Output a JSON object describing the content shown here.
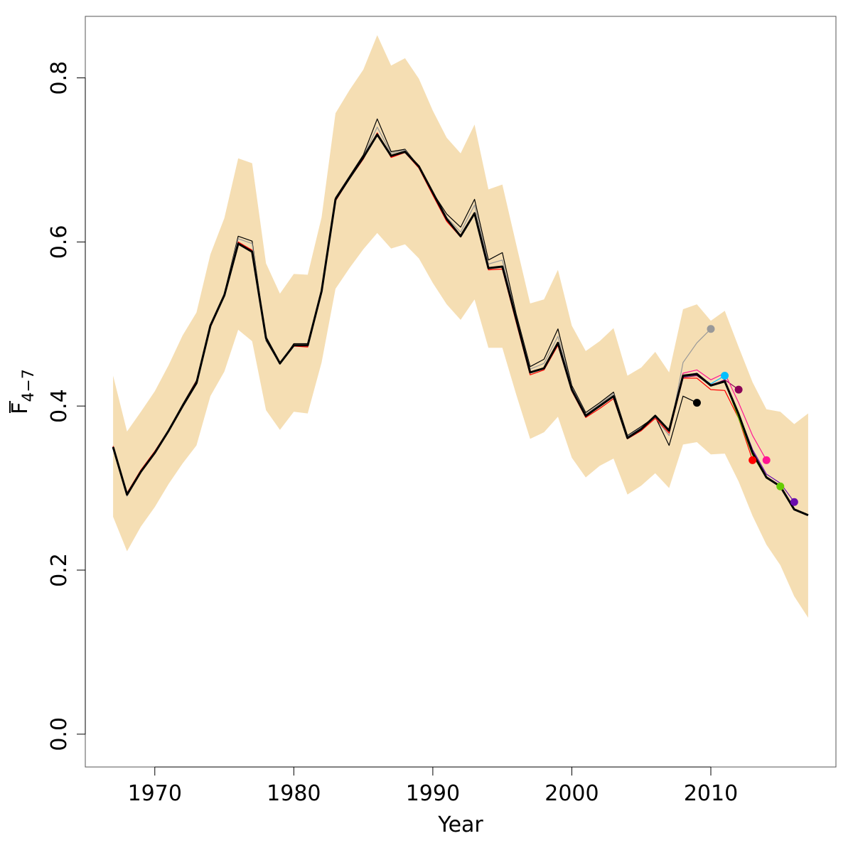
{
  "chart_data": {
    "type": "line",
    "title": "",
    "xlabel": "Year",
    "ylabel_main": "F",
    "ylabel_sub": "4−7",
    "xlim": [
      1965,
      2019
    ],
    "ylim": [
      -0.04,
      0.875
    ],
    "xticks": [
      1970,
      1980,
      1990,
      2000,
      2010
    ],
    "yticks": [
      0.0,
      0.2,
      0.4,
      0.6,
      0.8
    ],
    "ytick_labels": [
      "0.0",
      "0.2",
      "0.4",
      "0.6",
      "0.8"
    ],
    "band_color": "#f5deb3",
    "band": {
      "x": [
        1967,
        1968,
        1969,
        1970,
        1971,
        1972,
        1973,
        1974,
        1975,
        1976,
        1977,
        1978,
        1979,
        1980,
        1981,
        1982,
        1983,
        1984,
        1985,
        1986,
        1987,
        1988,
        1989,
        1990,
        1991,
        1992,
        1993,
        1994,
        1995,
        1996,
        1997,
        1998,
        1999,
        2000,
        2001,
        2002,
        2003,
        2004,
        2005,
        2006,
        2007,
        2008,
        2009,
        2010,
        2011,
        2012,
        2013,
        2014,
        2015,
        2016,
        2017
      ],
      "upper": [
        0.437,
        0.369,
        0.393,
        0.418,
        0.45,
        0.486,
        0.514,
        0.585,
        0.629,
        0.702,
        0.696,
        0.574,
        0.537,
        0.561,
        0.56,
        0.63,
        0.757,
        0.785,
        0.81,
        0.852,
        0.815,
        0.824,
        0.799,
        0.76,
        0.727,
        0.708,
        0.743,
        0.664,
        0.67,
        0.597,
        0.525,
        0.53,
        0.566,
        0.498,
        0.467,
        0.479,
        0.495,
        0.437,
        0.447,
        0.466,
        0.441,
        0.518,
        0.524,
        0.504,
        0.516,
        0.472,
        0.429,
        0.396,
        0.393,
        0.378,
        0.391
      ],
      "lower": [
        0.265,
        0.223,
        0.253,
        0.277,
        0.305,
        0.33,
        0.352,
        0.412,
        0.442,
        0.493,
        0.479,
        0.395,
        0.371,
        0.393,
        0.391,
        0.453,
        0.543,
        0.568,
        0.591,
        0.611,
        0.592,
        0.597,
        0.58,
        0.55,
        0.524,
        0.505,
        0.53,
        0.471,
        0.471,
        0.414,
        0.36,
        0.368,
        0.387,
        0.337,
        0.313,
        0.327,
        0.336,
        0.292,
        0.303,
        0.318,
        0.3,
        0.353,
        0.356,
        0.341,
        0.342,
        0.308,
        0.266,
        0.231,
        0.206,
        0.168,
        0.142
      ]
    },
    "series": [
      {
        "color": "#000000",
        "width": 3,
        "x": [
          1967,
          1968,
          1969,
          1970,
          1971,
          1972,
          1973,
          1974,
          1975,
          1976,
          1977,
          1978,
          1979,
          1980,
          1981,
          1982,
          1983,
          1984,
          1985,
          1986,
          1987,
          1988,
          1989,
          1990,
          1991,
          1992,
          1993,
          1994,
          1995,
          1996,
          1997,
          1998,
          1999,
          2000,
          2001,
          2002,
          2003,
          2004,
          2005,
          2006,
          2007,
          2008,
          2009,
          2010,
          2011,
          2012,
          2013,
          2014,
          2015,
          2016,
          2017
        ],
        "values": [
          0.35,
          0.292,
          0.32,
          0.343,
          0.37,
          0.4,
          0.428,
          0.498,
          0.535,
          0.598,
          0.588,
          0.483,
          0.452,
          0.474,
          0.474,
          0.54,
          0.652,
          0.678,
          0.703,
          0.731,
          0.705,
          0.71,
          0.692,
          0.66,
          0.628,
          0.607,
          0.635,
          0.568,
          0.57,
          0.506,
          0.441,
          0.446,
          0.477,
          0.42,
          0.388,
          0.4,
          0.412,
          0.361,
          0.372,
          0.388,
          0.37,
          0.437,
          0.439,
          0.425,
          0.43,
          0.39,
          0.343,
          0.313,
          0.302,
          0.274,
          0.267
        ]
      },
      {
        "color": "#000000",
        "width": 1.2,
        "x": [
          1967,
          1968,
          1969,
          1970,
          1971,
          1972,
          1973,
          1974,
          1975,
          1976,
          1977,
          1978,
          1979,
          1980,
          1981,
          1982,
          1983,
          1984,
          1985,
          1986,
          1987,
          1988,
          1989,
          1990,
          1991,
          1992,
          1993,
          1994,
          1995,
          1996,
          1997,
          1998,
          1999,
          2000,
          2001,
          2002,
          2003,
          2004,
          2005,
          2006,
          2007,
          2008,
          2009
        ],
        "values": [
          0.351,
          0.291,
          0.321,
          0.344,
          0.371,
          0.402,
          0.431,
          0.499,
          0.537,
          0.607,
          0.601,
          0.48,
          0.451,
          0.476,
          0.476,
          0.541,
          0.654,
          0.68,
          0.706,
          0.75,
          0.71,
          0.713,
          0.692,
          0.66,
          0.634,
          0.618,
          0.652,
          0.578,
          0.587,
          0.512,
          0.448,
          0.457,
          0.494,
          0.425,
          0.392,
          0.404,
          0.417,
          0.364,
          0.375,
          0.387,
          0.352,
          0.412,
          0.404
        ]
      },
      {
        "color": "#999999",
        "width": 1.2,
        "x": [
          1967,
          1968,
          1969,
          1970,
          1971,
          1972,
          1973,
          1974,
          1975,
          1976,
          1977,
          1978,
          1979,
          1980,
          1981,
          1982,
          1983,
          1984,
          1985,
          1986,
          1987,
          1988,
          1989,
          1990,
          1991,
          1992,
          1993,
          1994,
          1995,
          1996,
          1997,
          1998,
          1999,
          2000,
          2001,
          2002,
          2003,
          2004,
          2005,
          2006,
          2007,
          2008,
          2009,
          2010
        ],
        "values": [
          0.35,
          0.29,
          0.32,
          0.343,
          0.37,
          0.401,
          0.429,
          0.498,
          0.536,
          0.604,
          0.598,
          0.481,
          0.452,
          0.474,
          0.474,
          0.541,
          0.653,
          0.679,
          0.704,
          0.74,
          0.708,
          0.712,
          0.692,
          0.661,
          0.63,
          0.612,
          0.645,
          0.573,
          0.578,
          0.509,
          0.445,
          0.452,
          0.485,
          0.423,
          0.39,
          0.402,
          0.415,
          0.363,
          0.374,
          0.386,
          0.364,
          0.453,
          0.477,
          0.494
        ]
      },
      {
        "color": "#00bfff",
        "width": 1.2,
        "x": [
          2007,
          2008,
          2009,
          2010,
          2011
        ],
        "values": [
          0.368,
          0.436,
          0.438,
          0.427,
          0.437
        ]
      },
      {
        "color": "#8b0057",
        "width": 1.2,
        "x": [
          2007,
          2008,
          2009,
          2010,
          2011,
          2012
        ],
        "values": [
          0.369,
          0.435,
          0.437,
          0.425,
          0.432,
          0.42
        ]
      },
      {
        "color": "#ff0000",
        "width": 1.2,
        "x": [
          1967,
          1968,
          1969,
          1970,
          1971,
          1972,
          1973,
          1974,
          1975,
          1976,
          1977,
          1978,
          1979,
          1980,
          1981,
          1982,
          1983,
          1984,
          1985,
          1986,
          1987,
          1988,
          1989,
          1990,
          1991,
          1992,
          1993,
          1994,
          1995,
          1996,
          1997,
          1998,
          1999,
          2000,
          2001,
          2002,
          2003,
          2004,
          2005,
          2006,
          2007,
          2008,
          2009,
          2010,
          2011,
          2012,
          2013
        ],
        "values": [
          0.351,
          0.294,
          0.322,
          0.345,
          0.371,
          0.401,
          0.43,
          0.496,
          0.534,
          0.6,
          0.59,
          0.482,
          0.452,
          0.473,
          0.472,
          0.538,
          0.65,
          0.677,
          0.701,
          0.733,
          0.703,
          0.709,
          0.69,
          0.657,
          0.625,
          0.606,
          0.635,
          0.566,
          0.567,
          0.502,
          0.438,
          0.444,
          0.474,
          0.418,
          0.386,
          0.397,
          0.409,
          0.36,
          0.37,
          0.385,
          0.367,
          0.434,
          0.434,
          0.42,
          0.419,
          0.385,
          0.334
        ]
      },
      {
        "color": "#ff1493",
        "width": 1.2,
        "x": [
          2007,
          2008,
          2009,
          2010,
          2011,
          2012,
          2013,
          2014
        ],
        "values": [
          0.371,
          0.44,
          0.444,
          0.432,
          0.44,
          0.404,
          0.364,
          0.334
        ]
      },
      {
        "color": "#66cc00",
        "width": 1.2,
        "x": [
          2007,
          2008,
          2009,
          2010,
          2011,
          2012,
          2013,
          2014,
          2015
        ],
        "values": [
          0.37,
          0.437,
          0.439,
          0.426,
          0.43,
          0.385,
          0.34,
          0.312,
          0.302
        ]
      },
      {
        "color": "#6a0dad",
        "width": 1.2,
        "x": [
          2007,
          2008,
          2009,
          2010,
          2011,
          2012,
          2013,
          2014,
          2015,
          2016
        ],
        "values": [
          0.37,
          0.437,
          0.44,
          0.426,
          0.431,
          0.391,
          0.347,
          0.317,
          0.306,
          0.283
        ]
      }
    ],
    "points": [
      {
        "x": 2009,
        "y": 0.404,
        "color": "#000000"
      },
      {
        "x": 2010,
        "y": 0.494,
        "color": "#999999"
      },
      {
        "x": 2011,
        "y": 0.437,
        "color": "#00bfff"
      },
      {
        "x": 2012,
        "y": 0.42,
        "color": "#8b0057"
      },
      {
        "x": 2013,
        "y": 0.334,
        "color": "#ff0000"
      },
      {
        "x": 2014,
        "y": 0.334,
        "color": "#ff1493"
      },
      {
        "x": 2015,
        "y": 0.302,
        "color": "#66cc00"
      },
      {
        "x": 2016,
        "y": 0.283,
        "color": "#6a0dad"
      }
    ]
  }
}
